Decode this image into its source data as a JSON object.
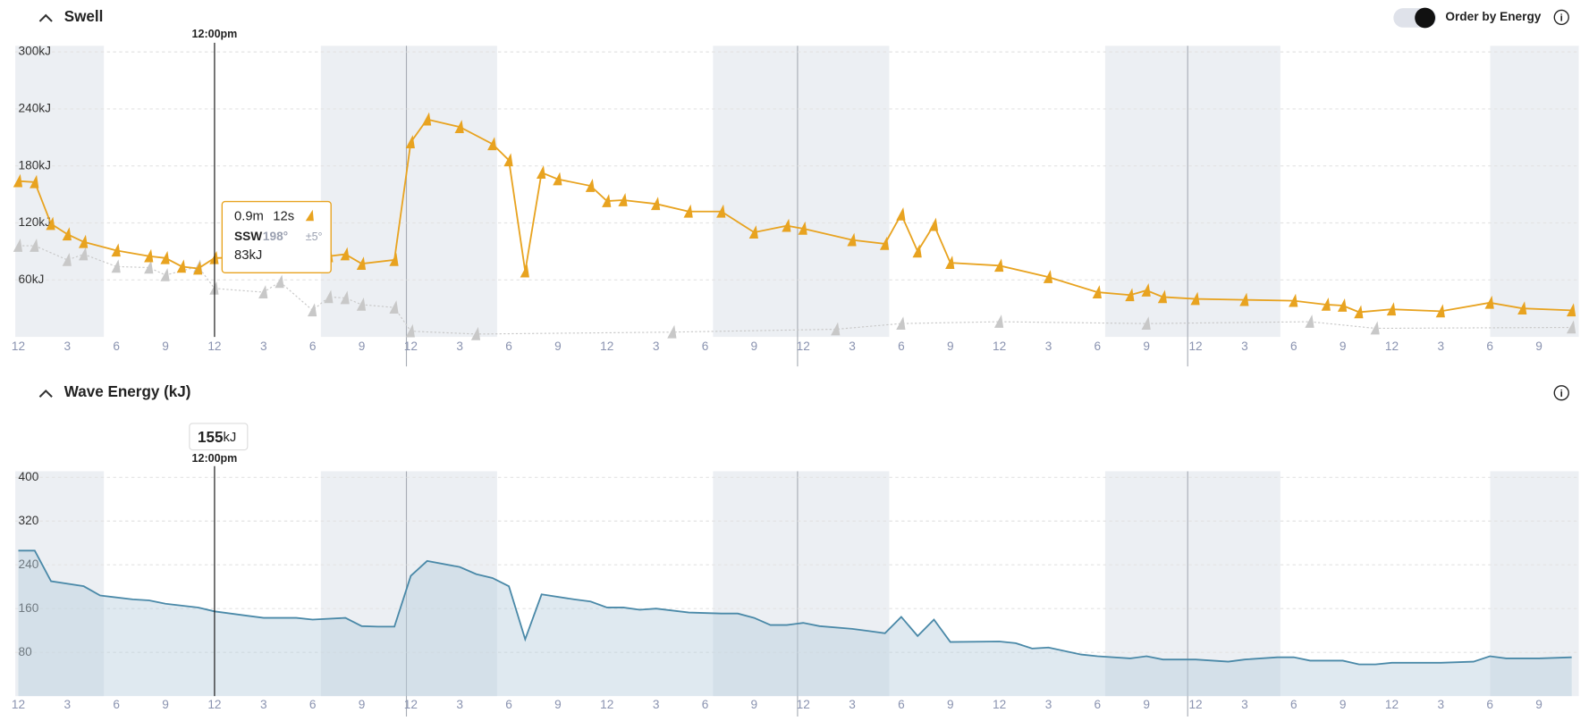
{
  "chart_data": [
    {
      "type": "line",
      "title": "Swell",
      "toggle_label": "Order by Energy",
      "crosshair_label": "12:00pm",
      "crosshair_x": 12,
      "tooltip": {
        "height": "0.9m",
        "period": "12s",
        "direction": "SSW",
        "degrees": "198°",
        "spread": "±5°",
        "energy": "83kJ"
      },
      "xlim": [
        0,
        95
      ],
      "ylim": [
        0,
        300
      ],
      "grid": true,
      "yticks": [
        {
          "value": 300,
          "label": "300kJ"
        },
        {
          "value": 240,
          "label": "240kJ"
        },
        {
          "value": 180,
          "label": "180kJ"
        },
        {
          "value": 120,
          "label": "120kJ"
        },
        {
          "value": 60,
          "label": "60kJ"
        }
      ],
      "xticks": [
        {
          "value": 0,
          "label": "12"
        },
        3,
        6,
        9,
        12,
        {
          "value": 15,
          "label": "3"
        },
        {
          "value": 18,
          "label": "6"
        },
        {
          "value": 21,
          "label": "9"
        },
        {
          "value": 24,
          "label": "12"
        },
        {
          "value": 27,
          "label": "3"
        },
        {
          "value": 30,
          "label": "6"
        },
        {
          "value": 33,
          "label": "9"
        },
        {
          "value": 36,
          "label": "12"
        },
        {
          "value": 39,
          "label": "3"
        },
        {
          "value": 42,
          "label": "6"
        },
        {
          "value": 45,
          "label": "9"
        },
        {
          "value": 48,
          "label": "12"
        },
        {
          "value": 51,
          "label": "3"
        },
        {
          "value": 54,
          "label": "6"
        },
        {
          "value": 57,
          "label": "9"
        },
        {
          "value": 60,
          "label": "12"
        },
        {
          "value": 63,
          "label": "3"
        },
        {
          "value": 66,
          "label": "6"
        },
        {
          "value": 69,
          "label": "9"
        },
        {
          "value": 72,
          "label": "12"
        },
        {
          "value": 75,
          "label": "3"
        },
        {
          "value": 78,
          "label": "6"
        },
        {
          "value": 81,
          "label": "9"
        },
        {
          "value": 84,
          "label": "12"
        },
        {
          "value": 87,
          "label": "3"
        },
        {
          "value": 90,
          "label": "6"
        },
        {
          "value": 93,
          "label": "9"
        }
      ],
      "series": [
        {
          "color": "#e8a320",
          "x": [
            0,
            1,
            2,
            3,
            4,
            6,
            8,
            9,
            10,
            11,
            12,
            15,
            18,
            19,
            20,
            21,
            23,
            24,
            25,
            27,
            29,
            30,
            31,
            32,
            33,
            35,
            36,
            37,
            39,
            41,
            43,
            45,
            47,
            48,
            51,
            53,
            54,
            55,
            56,
            57,
            60,
            63,
            66,
            68,
            69,
            70,
            72,
            75,
            78,
            80,
            81,
            82,
            84,
            87,
            90,
            92,
            95
          ],
          "values": [
            164,
            163,
            119,
            108,
            100,
            91,
            85,
            83,
            74,
            72,
            83,
            84,
            84,
            85,
            87,
            77,
            81,
            205,
            229,
            221,
            203,
            186,
            69,
            173,
            166,
            159,
            143,
            144,
            140,
            132,
            132,
            110,
            117,
            114,
            102,
            98,
            129,
            90,
            118,
            78,
            75,
            63,
            47,
            44,
            49,
            42,
            40,
            39,
            38,
            34,
            33,
            26,
            29,
            27,
            36,
            30,
            28
          ]
        },
        {
          "color": "#c8c8c8",
          "x": [
            0,
            1,
            3,
            4,
            6,
            8,
            9,
            11,
            12,
            15,
            16,
            18,
            19,
            20,
            21,
            23,
            24,
            28,
            40,
            50,
            54,
            60,
            69,
            79,
            83,
            95
          ],
          "values": [
            96,
            96,
            81,
            87,
            74,
            73,
            65,
            74,
            51,
            47,
            58,
            28,
            42,
            41,
            34,
            31,
            6,
            3,
            5,
            8,
            14,
            16,
            14,
            16,
            9,
            10
          ]
        }
      ]
    },
    {
      "type": "area",
      "title": "Wave Energy (kJ)",
      "crosshair_label": "12:00pm",
      "crosshair_x": 12,
      "readout": {
        "value": 155,
        "unit": "kJ"
      },
      "xlim": [
        0,
        95
      ],
      "ylim": [
        0,
        400
      ],
      "grid": true,
      "yticks": [
        400,
        320,
        240,
        160,
        80
      ],
      "xticks": [
        {
          "value": 0,
          "label": "12"
        },
        3,
        6,
        9,
        12,
        {
          "value": 15,
          "label": "3"
        },
        {
          "value": 18,
          "label": "6"
        },
        {
          "value": 21,
          "label": "9"
        },
        {
          "value": 24,
          "label": "12"
        },
        {
          "value": 27,
          "label": "3"
        },
        {
          "value": 30,
          "label": "6"
        },
        {
          "value": 33,
          "label": "9"
        },
        {
          "value": 36,
          "label": "12"
        },
        {
          "value": 39,
          "label": "3"
        },
        {
          "value": 42,
          "label": "6"
        },
        {
          "value": 45,
          "label": "9"
        },
        {
          "value": 48,
          "label": "12"
        },
        {
          "value": 51,
          "label": "3"
        },
        {
          "value": 54,
          "label": "6"
        },
        {
          "value": 57,
          "label": "9"
        },
        {
          "value": 60,
          "label": "12"
        },
        {
          "value": 63,
          "label": "3"
        },
        {
          "value": 66,
          "label": "6"
        },
        {
          "value": 69,
          "label": "9"
        },
        {
          "value": 72,
          "label": "12"
        },
        {
          "value": 75,
          "label": "3"
        },
        {
          "value": 78,
          "label": "6"
        },
        {
          "value": 81,
          "label": "9"
        },
        {
          "value": 84,
          "label": "12"
        },
        {
          "value": 87,
          "label": "3"
        },
        {
          "value": 90,
          "label": "6"
        },
        {
          "value": 93,
          "label": "9"
        }
      ],
      "series": [
        {
          "color": "#4a89a8",
          "x": [
            0,
            1,
            2,
            4,
            5,
            7,
            8,
            9,
            11,
            12,
            14,
            15,
            17,
            18,
            20,
            21,
            22,
            23,
            24,
            25,
            27,
            28,
            29,
            30,
            31,
            32,
            34,
            35,
            36,
            37,
            38,
            39,
            41,
            43,
            44,
            45,
            46,
            47,
            48,
            49,
            51,
            52,
            53,
            54,
            55,
            56,
            57,
            60,
            61,
            62,
            63,
            65,
            66,
            68,
            69,
            70,
            72,
            74,
            75,
            77,
            78,
            79,
            81,
            82,
            83,
            84,
            87,
            89,
            90,
            91,
            93,
            95
          ],
          "values": [
            266,
            266,
            210,
            201,
            184,
            177,
            175,
            169,
            162,
            155,
            147,
            143,
            143,
            140,
            143,
            128,
            127,
            127,
            220,
            247,
            236,
            223,
            216,
            201,
            104,
            186,
            177,
            173,
            162,
            162,
            158,
            160,
            153,
            151,
            151,
            143,
            130,
            130,
            134,
            128,
            123,
            119,
            115,
            145,
            110,
            140,
            99,
            100,
            97,
            87,
            89,
            76,
            73,
            69,
            73,
            67,
            67,
            63,
            67,
            71,
            71,
            65,
            65,
            58,
            58,
            61,
            61,
            63,
            73,
            69,
            69,
            71
          ]
        }
      ]
    }
  ]
}
